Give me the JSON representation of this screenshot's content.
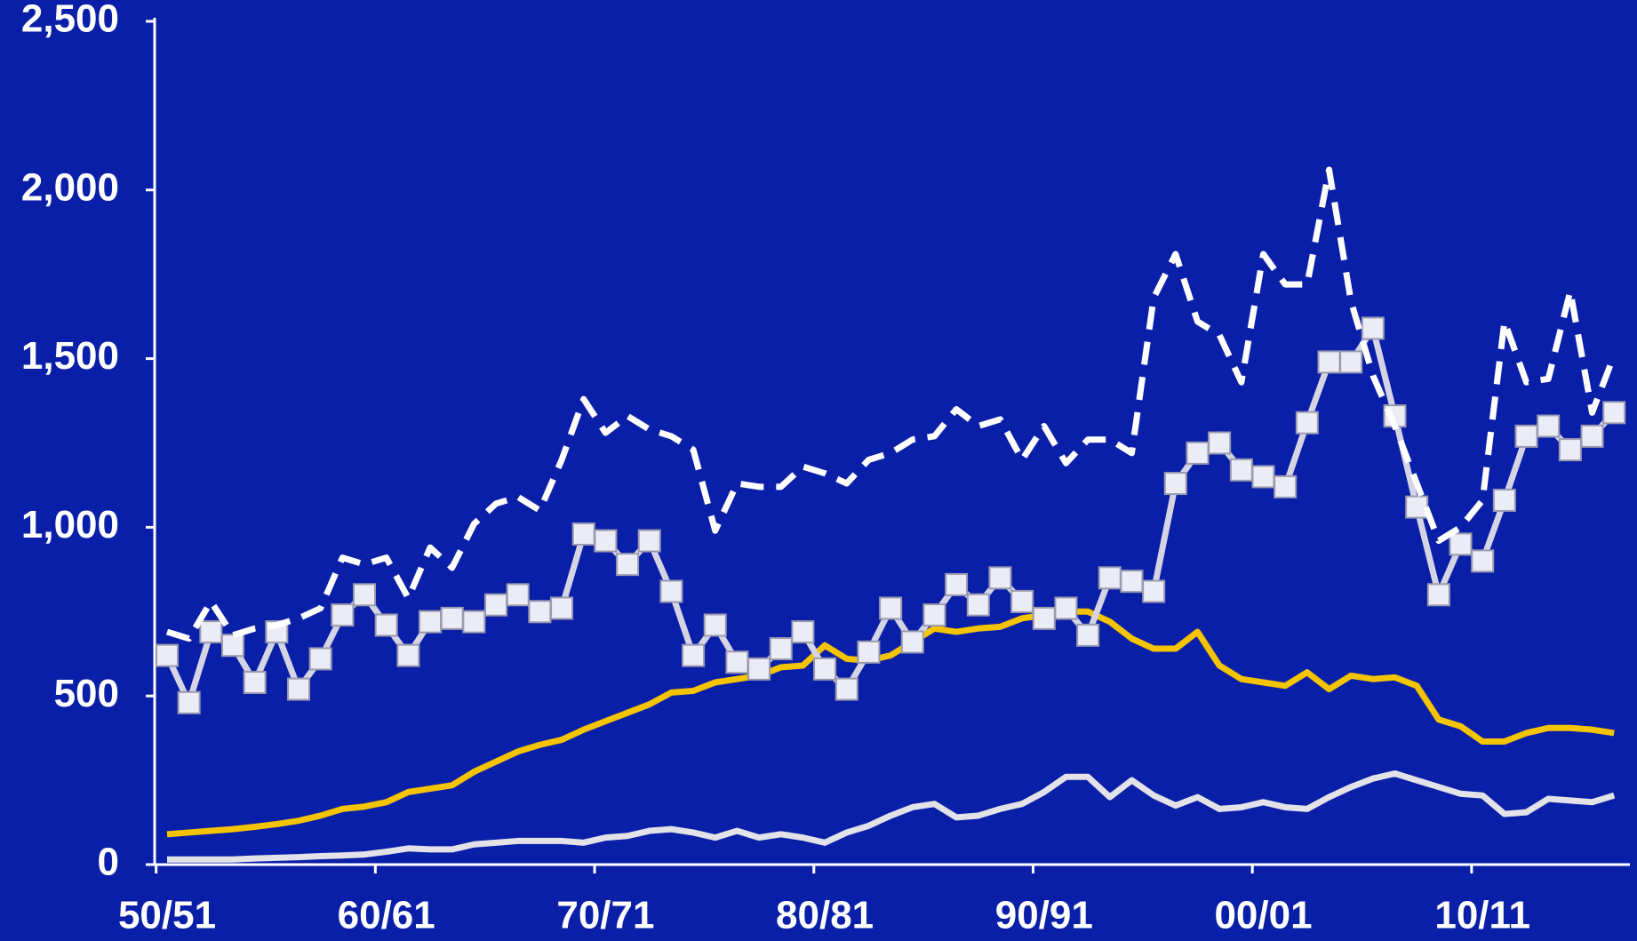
{
  "chart_data": {
    "type": "line",
    "categories": [
      "50/51",
      null,
      null,
      null,
      null,
      null,
      null,
      null,
      null,
      null,
      "60/61",
      null,
      null,
      null,
      null,
      null,
      null,
      null,
      null,
      null,
      "70/71",
      null,
      null,
      null,
      null,
      null,
      null,
      null,
      null,
      null,
      "80/81",
      null,
      null,
      null,
      null,
      null,
      null,
      null,
      null,
      null,
      "90/91",
      null,
      null,
      null,
      null,
      null,
      null,
      null,
      null,
      null,
      "00/01",
      null,
      null,
      null,
      null,
      null,
      null,
      null,
      null,
      null,
      "10/11",
      null,
      null,
      null,
      null,
      null,
      null
    ],
    "series": [
      {
        "color": "#ffffff",
        "style": "dashed",
        "values": [
          690,
          670,
          780,
          680,
          700,
          710,
          730,
          760,
          910,
          890,
          910,
          790,
          940,
          880,
          1010,
          1070,
          1090,
          1050,
          1200,
          1380,
          1280,
          1330,
          1290,
          1270,
          1230,
          990,
          1130,
          1120,
          1120,
          1180,
          1160,
          1130,
          1200,
          1220,
          1260,
          1270,
          1350,
          1300,
          1320,
          1200,
          1300,
          1190,
          1260,
          1260,
          1220,
          1680,
          1810,
          1610,
          1570,
          1430,
          1810,
          1720,
          1720,
          2060,
          1670,
          1450,
          1300,
          1130,
          960,
          1000,
          1080,
          1610,
          1430,
          1440,
          1700,
          1340,
          1510
        ]
      },
      {
        "color": "#d4d4e4",
        "marker": "square",
        "values": [
          620,
          480,
          690,
          650,
          540,
          690,
          520,
          610,
          740,
          800,
          710,
          620,
          720,
          730,
          720,
          770,
          800,
          750,
          760,
          980,
          960,
          890,
          960,
          810,
          620,
          710,
          600,
          580,
          640,
          690,
          580,
          520,
          630,
          760,
          660,
          740,
          830,
          770,
          850,
          780,
          730,
          760,
          680,
          850,
          840,
          810,
          1130,
          1220,
          1250,
          1170,
          1150,
          1120,
          1310,
          1490,
          1490,
          1590,
          1330,
          1060,
          800,
          950,
          900,
          1080,
          1270,
          1300,
          1230,
          1270,
          1340
        ]
      },
      {
        "color": "#f5c400",
        "values": [
          90,
          95,
          100,
          105,
          112,
          120,
          130,
          145,
          165,
          172,
          185,
          215,
          225,
          235,
          275,
          305,
          335,
          355,
          370,
          400,
          425,
          450,
          475,
          510,
          515,
          540,
          550,
          560,
          585,
          590,
          650,
          610,
          605,
          620,
          660,
          700,
          690,
          700,
          705,
          730,
          740,
          750,
          750,
          720,
          670,
          640,
          640,
          690,
          590,
          550,
          540,
          530,
          570,
          520,
          560,
          550,
          555,
          530,
          430,
          410,
          365,
          365,
          390,
          405,
          405,
          400,
          390
        ]
      },
      {
        "color": "#e2e2e8",
        "values": [
          15,
          15,
          15,
          15,
          18,
          20,
          22,
          25,
          27,
          30,
          38,
          48,
          45,
          45,
          60,
          65,
          70,
          70,
          70,
          65,
          80,
          85,
          100,
          105,
          95,
          80,
          100,
          80,
          90,
          80,
          65,
          95,
          115,
          145,
          170,
          180,
          140,
          145,
          165,
          180,
          215,
          260,
          260,
          200,
          250,
          205,
          175,
          200,
          165,
          170,
          185,
          170,
          165,
          200,
          230,
          255,
          270,
          250,
          230,
          210,
          205,
          150,
          155,
          195,
          190,
          185,
          205
        ]
      }
    ],
    "ylim": [
      0,
      2500
    ],
    "yticks": [
      0,
      500,
      {
        "value": 1000,
        "label": "1,000"
      },
      {
        "value": 1500,
        "label": "1,500"
      },
      {
        "value": 2000,
        "label": "2,000"
      },
      {
        "value": 2500,
        "label": "2,500"
      }
    ]
  }
}
